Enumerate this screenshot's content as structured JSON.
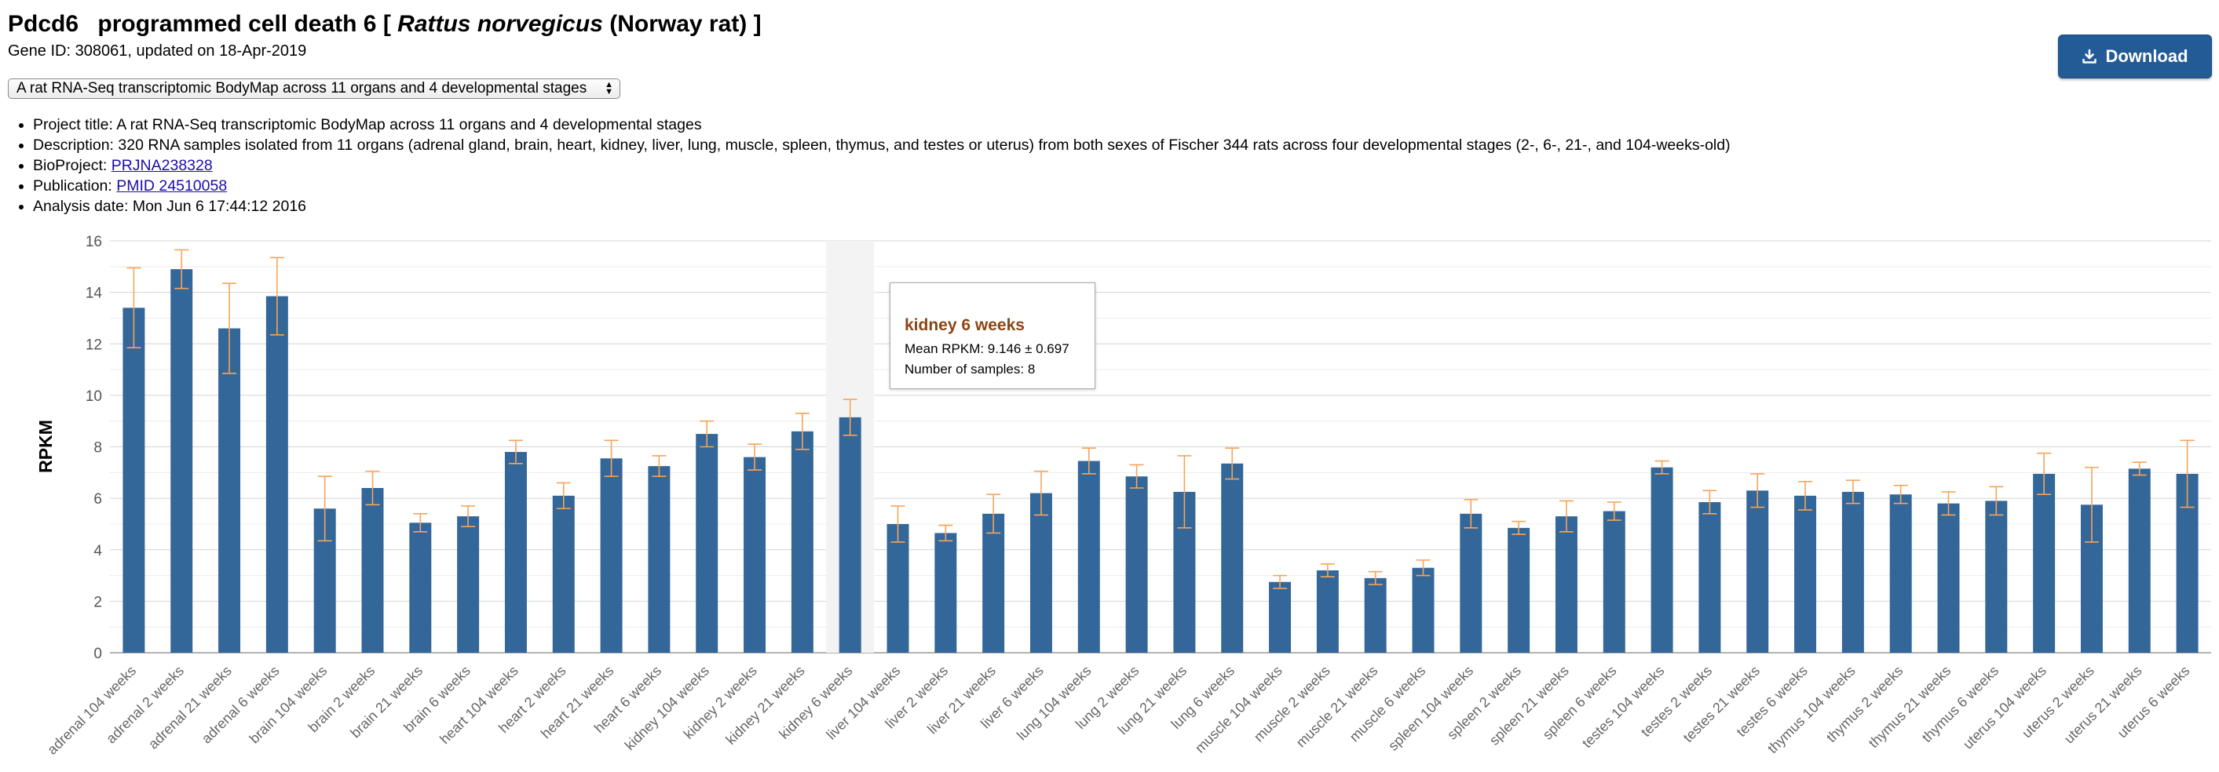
{
  "header": {
    "symbol": "Pdcd6",
    "name_pre": "programmed cell death 6 [",
    "species": "Rattus norvegicus",
    "name_post": "(Norway rat) ]",
    "gene_line": "Gene ID: 308061, updated on 18-Apr-2019",
    "download_label": "Download"
  },
  "project_select": {
    "selected": "A rat RNA-Seq transcriptomic BodyMap across 11 organs and 4 developmental stages"
  },
  "info": {
    "project_title_label": "Project title:",
    "project_title": "A rat RNA-Seq transcriptomic BodyMap across 11 organs and 4 developmental stages",
    "description_label": "Description:",
    "description": "320 RNA samples isolated from 11 organs (adrenal gland, brain, heart, kidney, liver, lung, muscle, spleen, thymus, and testes or uterus) from both sexes of Fischer 344 rats across four developmental stages (2-, 6-, 21-, and 104-weeks-old)",
    "bioproject_label": "BioProject:",
    "bioproject": "PRJNA238328",
    "publication_label": "Publication:",
    "publication": "PMID 24510058",
    "analysis_label": "Analysis date:",
    "analysis_date": "Mon Jun 6 17:44:12 2016"
  },
  "tooltip": {
    "title": "kidney 6 weeks",
    "mean": "Mean RPKM: 9.146 ± 0.697",
    "samples": "Number of samples: 8"
  },
  "colors": {
    "bar": "#336699",
    "error": "#f5a55a",
    "tooltip_title": "#8b4513",
    "button": "#225b95"
  },
  "chart_data": {
    "type": "bar",
    "ylabel": "RPKM",
    "ylim": [
      0,
      16
    ],
    "yticks": [
      0,
      2,
      4,
      6,
      8,
      10,
      12,
      14,
      16
    ],
    "grid": true,
    "highlighted": "kidney 6 weeks",
    "categories": [
      "adrenal 104 weeks",
      "adrenal 2 weeks",
      "adrenal 21 weeks",
      "adrenal 6 weeks",
      "brain 104 weeks",
      "brain 2 weeks",
      "brain 21 weeks",
      "brain 6 weeks",
      "heart 104 weeks",
      "heart 2 weeks",
      "heart 21 weeks",
      "heart 6 weeks",
      "kidney 104 weeks",
      "kidney 2 weeks",
      "kidney 21 weeks",
      "kidney 6 weeks",
      "liver 104 weeks",
      "liver 2 weeks",
      "liver 21 weeks",
      "liver 6 weeks",
      "lung 104 weeks",
      "lung 2 weeks",
      "lung 21 weeks",
      "lung 6 weeks",
      "muscle 104 weeks",
      "muscle 2 weeks",
      "muscle 21 weeks",
      "muscle 6 weeks",
      "spleen 104 weeks",
      "spleen 2 weeks",
      "spleen 21 weeks",
      "spleen 6 weeks",
      "testes 104 weeks",
      "testes 2 weeks",
      "testes 21 weeks",
      "testes 6 weeks",
      "thymus 104 weeks",
      "thymus 2 weeks",
      "thymus 21 weeks",
      "thymus 6 weeks",
      "uterus 104 weeks",
      "uterus 2 weeks",
      "uterus 21 weeks",
      "uterus 6 weeks"
    ],
    "values": [
      13.4,
      14.9,
      12.6,
      13.85,
      5.6,
      6.4,
      5.05,
      5.3,
      7.8,
      6.1,
      7.55,
      7.25,
      8.5,
      7.6,
      8.6,
      9.146,
      5.0,
      4.65,
      5.4,
      6.2,
      7.45,
      6.85,
      6.25,
      7.35,
      2.75,
      3.2,
      2.9,
      3.3,
      5.4,
      4.85,
      5.3,
      5.5,
      7.2,
      5.85,
      6.3,
      6.1,
      6.25,
      6.15,
      5.8,
      5.9,
      6.95,
      5.75,
      7.15,
      6.95
    ],
    "errors": [
      1.55,
      0.75,
      1.75,
      1.5,
      1.25,
      0.65,
      0.35,
      0.4,
      0.45,
      0.5,
      0.7,
      0.4,
      0.5,
      0.5,
      0.7,
      0.697,
      0.7,
      0.3,
      0.75,
      0.85,
      0.5,
      0.45,
      1.4,
      0.6,
      0.25,
      0.25,
      0.25,
      0.3,
      0.55,
      0.25,
      0.6,
      0.35,
      0.25,
      0.45,
      0.65,
      0.55,
      0.45,
      0.35,
      0.45,
      0.55,
      0.8,
      1.45,
      0.25,
      1.3
    ]
  }
}
